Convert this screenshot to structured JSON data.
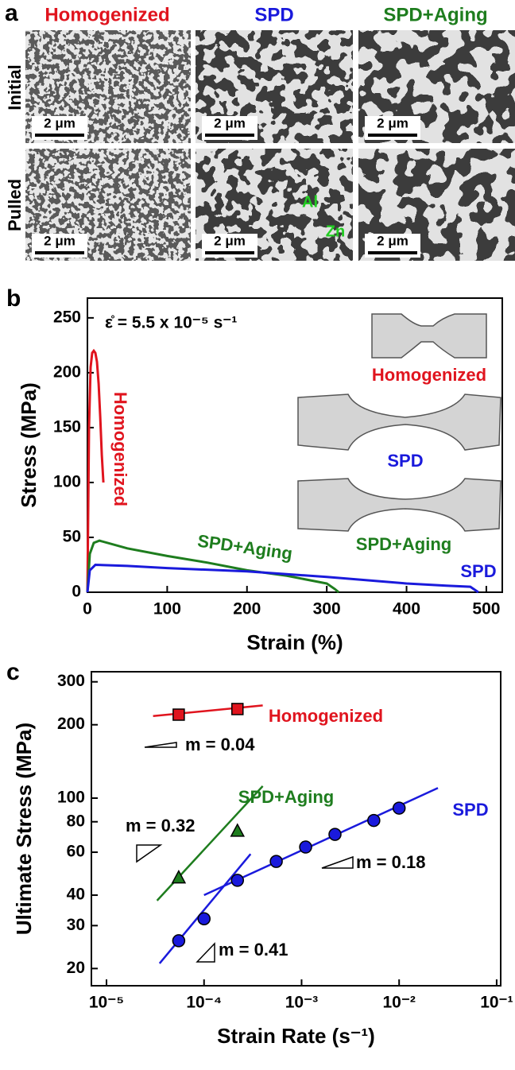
{
  "panel_a": {
    "label": "a",
    "columns": [
      "Homogenized",
      "SPD",
      "SPD+Aging"
    ],
    "rows": [
      "Initial",
      "Pulled"
    ],
    "scale_bars": [
      "2 μm",
      "2 μm",
      "2 μm",
      "2 μm",
      "2 μm",
      "2 μm"
    ],
    "phase_labels": [
      "Al",
      "Zn"
    ]
  },
  "chart_data": [
    {
      "type": "line",
      "label": "b",
      "rate_label": "ε̊ = 5.5 x 10⁻⁵ s⁻¹",
      "x_label": "Strain (%)",
      "y_label": "Stress (MPa)",
      "xlim": [
        0,
        520
      ],
      "ylim": [
        0,
        268
      ],
      "xticks": [
        0,
        100,
        200,
        300,
        400,
        500
      ],
      "yticks": [
        0,
        50,
        100,
        150,
        200,
        250
      ],
      "series": [
        {
          "name": "Homogenized",
          "color": "#e0141e",
          "x": [
            0,
            2,
            4,
            6,
            8,
            10,
            12,
            14,
            16,
            18,
            20
          ],
          "values": [
            0,
            150,
            205,
            218,
            220,
            218,
            210,
            190,
            160,
            125,
            100
          ]
        },
        {
          "name": "SPD+Aging",
          "color": "#1e7d1e",
          "x": [
            0,
            3,
            8,
            15,
            50,
            100,
            150,
            200,
            250,
            300,
            310,
            315
          ],
          "values": [
            0,
            35,
            45,
            47,
            40,
            33,
            27,
            20,
            15,
            8,
            3,
            0
          ]
        },
        {
          "name": "SPD",
          "color": "#1a1adc",
          "x": [
            0,
            3,
            10,
            50,
            100,
            200,
            300,
            400,
            450,
            480,
            490
          ],
          "values": [
            0,
            20,
            25,
            24,
            22,
            19,
            14,
            8,
            6,
            5,
            0
          ]
        }
      ],
      "specimen_labels": [
        "Homogenized",
        "SPD",
        "SPD+Aging"
      ]
    },
    {
      "type": "scatter",
      "label": "c",
      "log_x": true,
      "log_y": true,
      "x_label": "Strain Rate (s⁻¹)",
      "y_label": "Ultimate Stress (MPa)",
      "xlim": [
        7e-06,
        0.11
      ],
      "ylim": [
        17,
        330
      ],
      "xticks": [
        {
          "value": 1e-05,
          "label": "10⁻⁵"
        },
        {
          "value": 0.0001,
          "label": "10⁻⁴"
        },
        {
          "value": 0.001,
          "label": "10⁻³"
        },
        {
          "value": 0.01,
          "label": "10⁻²"
        },
        {
          "value": 0.1,
          "label": "10⁻¹"
        }
      ],
      "yticks": [
        20,
        30,
        40,
        60,
        80,
        100,
        200,
        300
      ],
      "series": [
        {
          "name": "Homogenized",
          "color": "#e0141e",
          "marker": "square",
          "x": [
            5.5e-05,
            0.00022
          ],
          "values": [
            220,
            232
          ]
        },
        {
          "name": "SPD+Aging",
          "color": "#1e7d1e",
          "marker": "triangle",
          "x": [
            5.5e-05,
            0.00022
          ],
          "values": [
            47,
            73
          ]
        },
        {
          "name": "SPD",
          "color": "#1a1adc",
          "marker": "circle",
          "x": [
            5.5e-05,
            0.0001,
            0.00022,
            0.00055,
            0.0011,
            0.0022,
            0.0055,
            0.01
          ],
          "values": [
            26,
            32,
            46,
            55,
            63,
            71,
            81,
            91
          ]
        }
      ],
      "fits": [
        {
          "color": "#e0141e",
          "x": [
            3e-05,
            0.0004
          ],
          "values": [
            217,
            240
          ]
        },
        {
          "color": "#1e7d1e",
          "x": [
            3.3e-05,
            0.0004
          ],
          "values": [
            38,
            112
          ]
        },
        {
          "color": "#1a1adc",
          "x": [
            3.5e-05,
            0.0003
          ],
          "values": [
            21,
            59
          ]
        },
        {
          "color": "#1a1adc",
          "x": [
            0.0001,
            0.025
          ],
          "values": [
            40,
            110
          ]
        }
      ],
      "annotations": [
        "m = 0.04",
        "m = 0.32",
        "m = 0.18",
        "m = 0.41"
      ]
    }
  ]
}
